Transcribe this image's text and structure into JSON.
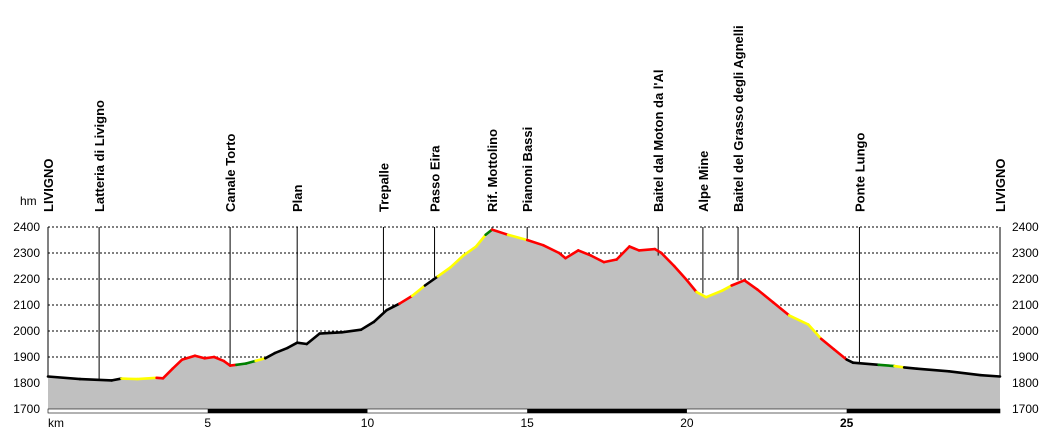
{
  "chart_data": {
    "type": "area",
    "y_unit": "hm",
    "x_unit": "km",
    "xlim": [
      0,
      29.8
    ],
    "ylim": [
      1700,
      2400
    ],
    "y_ticks": [
      1700,
      1800,
      1900,
      2000,
      2100,
      2200,
      2300,
      2400
    ],
    "x_ticks": [
      5,
      10,
      15,
      20,
      25
    ],
    "x_tick_bold": [
      25
    ],
    "grid": true,
    "colors": {
      "fill": "#c0c0c0",
      "gradient_black": "#000000",
      "gradient_green": "#008000",
      "gradient_yellow": "#ffff00",
      "gradient_red": "#ff0000",
      "grid": "#000000",
      "axis_bar": "#000000"
    },
    "waypoints": [
      {
        "label": "LIVIGNO",
        "x": 0.0,
        "y": 1825
      },
      {
        "label": "Latteria di Livigno",
        "x": 1.6,
        "y": 1812
      },
      {
        "label": "Canale Torto",
        "x": 5.7,
        "y": 1867
      },
      {
        "label": "Plan",
        "x": 7.8,
        "y": 1955
      },
      {
        "label": "Trepalle",
        "x": 10.5,
        "y": 2070
      },
      {
        "label": "Passo Eira",
        "x": 12.1,
        "y": 2208
      },
      {
        "label": "Rif. Mottolino",
        "x": 13.9,
        "y": 2390
      },
      {
        "label": "Pianoni Bassi",
        "x": 15.0,
        "y": 2350
      },
      {
        "label": "Baitel  dal Moton da l'Al",
        "x": 19.1,
        "y": 2290
      },
      {
        "label": "Alpe Mine",
        "x": 20.5,
        "y": 2145
      },
      {
        "label": "Baitel del Grasso degli Agnelli",
        "x": 21.6,
        "y": 2195
      },
      {
        "label": "Ponte Lungo",
        "x": 25.4,
        "y": 1878
      },
      {
        "label": "LIVIGNO",
        "x": 29.8,
        "y": 1825
      }
    ],
    "profile": [
      [
        0.0,
        1825,
        "black"
      ],
      [
        1.0,
        1815,
        "black"
      ],
      [
        2.0,
        1810,
        "black"
      ],
      [
        2.3,
        1817,
        "black"
      ],
      [
        2.8,
        1815,
        "yellow"
      ],
      [
        3.4,
        1820,
        "yellow"
      ],
      [
        3.6,
        1818,
        "red"
      ],
      [
        3.9,
        1855,
        "red"
      ],
      [
        4.2,
        1890,
        "red"
      ],
      [
        4.6,
        1905,
        "red"
      ],
      [
        4.9,
        1895,
        "red"
      ],
      [
        5.2,
        1900,
        "red"
      ],
      [
        5.5,
        1885,
        "red"
      ],
      [
        5.7,
        1867,
        "red"
      ],
      [
        5.9,
        1870,
        "red"
      ],
      [
        6.2,
        1875,
        "green"
      ],
      [
        6.5,
        1885,
        "green"
      ],
      [
        6.8,
        1895,
        "yellow"
      ],
      [
        7.1,
        1915,
        "black"
      ],
      [
        7.5,
        1935,
        "black"
      ],
      [
        7.8,
        1955,
        "black"
      ],
      [
        8.1,
        1950,
        "black"
      ],
      [
        8.5,
        1990,
        "black"
      ],
      [
        9.2,
        1995,
        "black"
      ],
      [
        9.8,
        2005,
        "black"
      ],
      [
        10.2,
        2035,
        "black"
      ],
      [
        10.6,
        2080,
        "black"
      ],
      [
        11.0,
        2105,
        "black"
      ],
      [
        11.4,
        2135,
        "red"
      ],
      [
        11.8,
        2175,
        "yellow"
      ],
      [
        12.2,
        2210,
        "black"
      ],
      [
        12.6,
        2245,
        "yellow"
      ],
      [
        13.0,
        2290,
        "yellow"
      ],
      [
        13.4,
        2325,
        "yellow"
      ],
      [
        13.7,
        2370,
        "yellow"
      ],
      [
        13.9,
        2390,
        "green"
      ],
      [
        14.4,
        2370,
        "red"
      ],
      [
        15.0,
        2350,
        "yellow"
      ],
      [
        15.5,
        2330,
        "red"
      ],
      [
        16.0,
        2300,
        "red"
      ],
      [
        16.2,
        2280,
        "red"
      ],
      [
        16.6,
        2310,
        "red"
      ],
      [
        17.0,
        2290,
        "red"
      ],
      [
        17.4,
        2265,
        "red"
      ],
      [
        17.8,
        2275,
        "red"
      ],
      [
        18.2,
        2325,
        "red"
      ],
      [
        18.5,
        2310,
        "red"
      ],
      [
        19.0,
        2315,
        "red"
      ],
      [
        19.2,
        2300,
        "red"
      ],
      [
        19.6,
        2250,
        "red"
      ],
      [
        20.0,
        2195,
        "red"
      ],
      [
        20.3,
        2150,
        "red"
      ],
      [
        20.6,
        2130,
        "yellow"
      ],
      [
        21.1,
        2155,
        "yellow"
      ],
      [
        21.4,
        2175,
        "yellow"
      ],
      [
        21.8,
        2195,
        "red"
      ],
      [
        22.2,
        2160,
        "red"
      ],
      [
        22.7,
        2110,
        "red"
      ],
      [
        23.2,
        2060,
        "red"
      ],
      [
        23.8,
        2025,
        "yellow"
      ],
      [
        24.2,
        1970,
        "yellow"
      ],
      [
        24.6,
        1930,
        "red"
      ],
      [
        25.0,
        1890,
        "red"
      ],
      [
        25.2,
        1878,
        "black"
      ],
      [
        26.0,
        1870,
        "black"
      ],
      [
        26.5,
        1865,
        "green"
      ],
      [
        26.8,
        1860,
        "yellow"
      ],
      [
        27.2,
        1855,
        "black"
      ],
      [
        28.2,
        1845,
        "black"
      ],
      [
        29.2,
        1830,
        "black"
      ],
      [
        29.8,
        1825,
        "black"
      ]
    ]
  }
}
